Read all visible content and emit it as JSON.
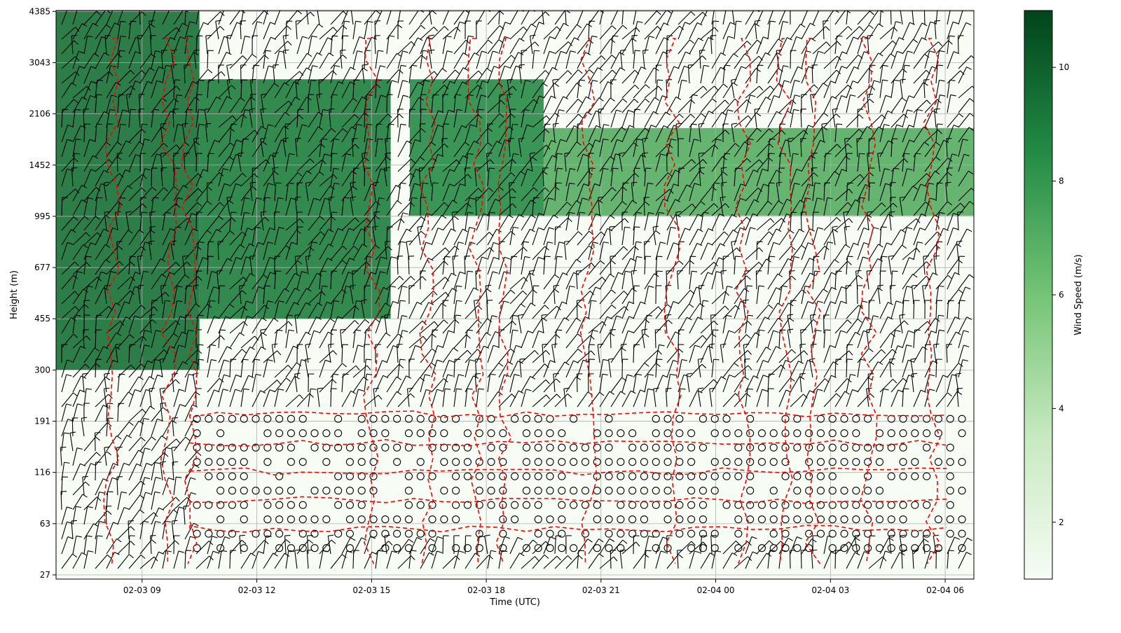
{
  "chart_data": {
    "type": "heatmap",
    "title": "",
    "xlabel": "Time (UTC)",
    "ylabel": "Height (m)",
    "x_start": "02-03 06:45",
    "x_end": "02-04 06:45",
    "x_ticks": [
      "02-03 09",
      "02-03 12",
      "02-03 15",
      "02-03 18",
      "02-03 21",
      "02-04 00",
      "02-04 03",
      "02-04 06"
    ],
    "y_scale": "log",
    "y_ticks": [
      27,
      63,
      116,
      191,
      300,
      455,
      677,
      995,
      1452,
      2106,
      3043,
      4385
    ],
    "y_ticks_from_bottom": true,
    "grid": true,
    "colorbar": {
      "label": "Wind Speed (m/s)",
      "colormap": "Greens",
      "range": [
        1.0,
        11.0
      ],
      "ticks": [
        2,
        4,
        6,
        8,
        10
      ],
      "color_low": "#f7fcf5",
      "color_high": "#00441b"
    },
    "overlays": [
      "wind barbs (black)",
      "calm-wind circles (black)",
      "red dashed contours"
    ],
    "wind_speed_regions": [
      {
        "t_start": "02-03 06:45",
        "t_end": "02-03 10:30",
        "z_bottom": 300,
        "z_top": 5500,
        "speed": 9.5
      },
      {
        "t_start": "02-03 10:30",
        "t_end": "02-03 15:30",
        "z_bottom": 455,
        "z_top": 2700,
        "speed": 9.0
      },
      {
        "t_start": "02-03 16:00",
        "t_end": "02-03 19:30",
        "z_bottom": 1000,
        "z_top": 2700,
        "speed": 8.5
      },
      {
        "t_start": "02-03 19:30",
        "t_end": "02-04 06:45",
        "z_bottom": 1000,
        "z_top": 1900,
        "speed": 7.0
      }
    ],
    "calm_layer": {
      "z_bottom": 40,
      "z_top": 210
    }
  }
}
